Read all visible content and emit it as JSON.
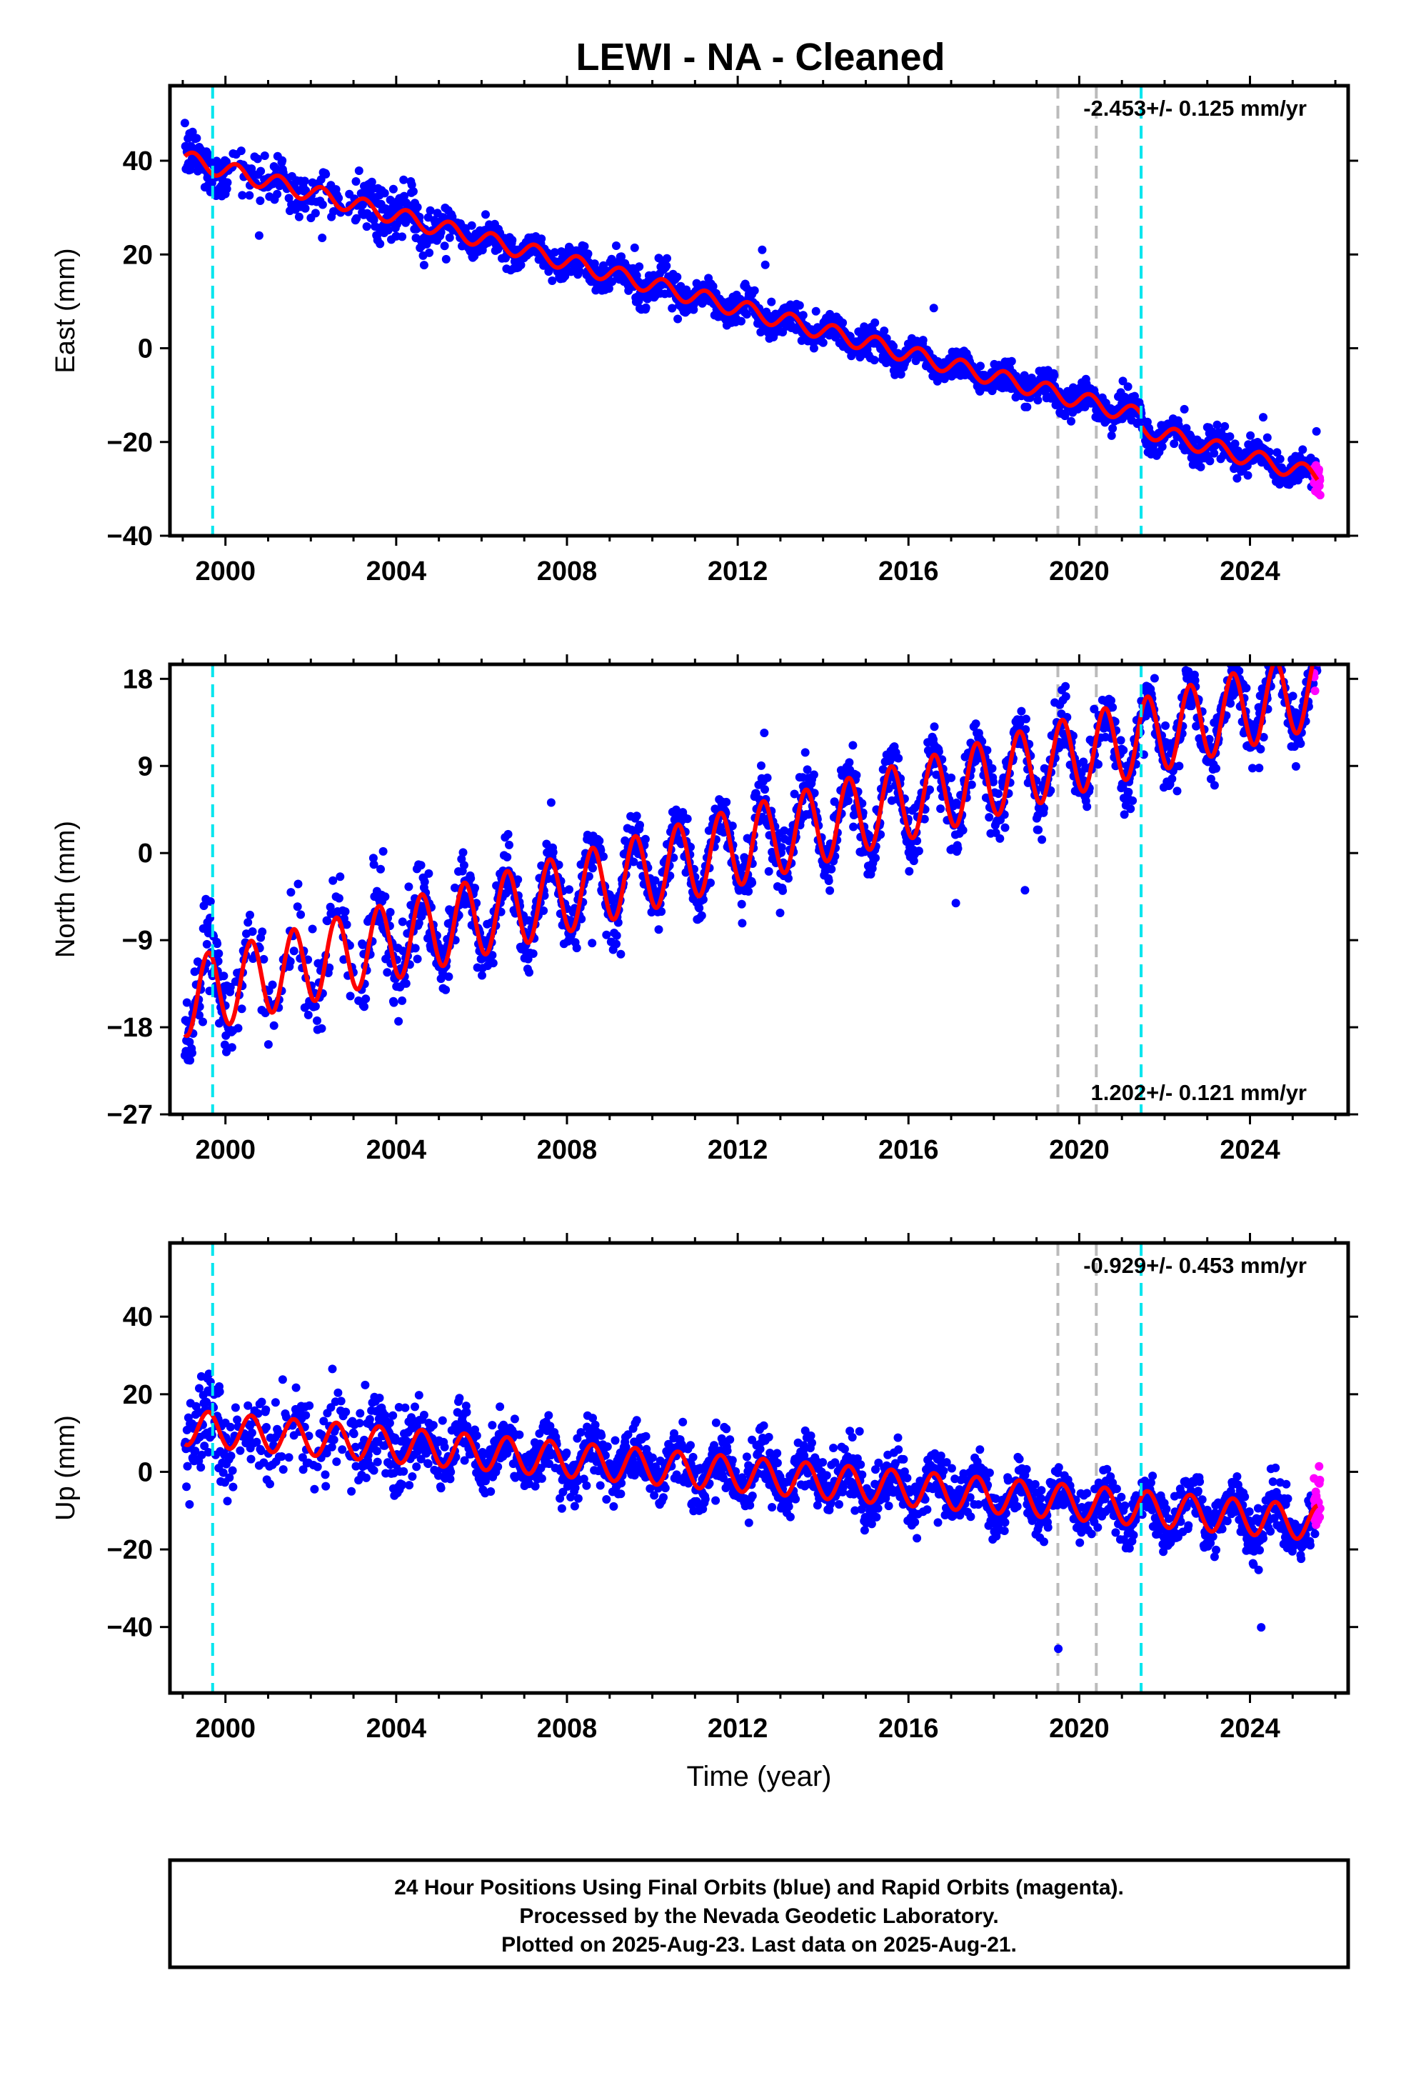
{
  "title": "LEWI  - NA - Cleaned",
  "colors": {
    "final_orbits": "#0000ff",
    "rapid_orbits": "#ff00ff",
    "model_fit": "#ff0000",
    "antenna_change": "#00e5ee",
    "equipment_change": "#bbbbbb"
  },
  "chart_data": [
    {
      "type": "scatter",
      "name": "east",
      "ylabel": "East (mm)",
      "xlabel": "",
      "xlim": [
        1998.7,
        2026.3
      ],
      "ylim": [
        -40,
        56
      ],
      "yticks": [
        40,
        20,
        0,
        -20,
        -40
      ],
      "ytick_labels": [
        "40",
        "20",
        "0",
        "−20",
        "−40"
      ],
      "xticks": [
        2000,
        2004,
        2008,
        2012,
        2016,
        2020,
        2024
      ],
      "xtick_labels": [
        "2000",
        "2004",
        "2008",
        "2012",
        "2016",
        "2020",
        "2024"
      ],
      "rate_label": "-2.453+/- 0.125 mm/yr",
      "rate_position": "top-right",
      "trend": {
        "ref_year": 1999.0,
        "value_at_ref": 40.5,
        "rate": -2.453,
        "annual_amplitude": 1.8,
        "annual_peak_frac": 0.25,
        "noise_sd": 1.6
      },
      "offsets": [
        {
          "year": 2021.45,
          "size": -2.5
        }
      ],
      "data_span": [
        1999.05,
        2025.58
      ],
      "rapid_span": [
        2025.5,
        2025.65
      ],
      "antenna_changes": [
        1999.7,
        2021.45
      ],
      "equipment_changes": [
        2019.5,
        2020.4
      ]
    },
    {
      "type": "scatter",
      "name": "north",
      "ylabel": "North (mm)",
      "xlabel": "",
      "xlim": [
        1998.7,
        2026.3
      ],
      "ylim": [
        -27,
        19.5
      ],
      "yticks": [
        18,
        9,
        0,
        -9,
        -18,
        -27
      ],
      "ytick_labels": [
        "18",
        "9",
        "0",
        "−9",
        "−18",
        "−27"
      ],
      "xticks": [
        2000,
        2004,
        2008,
        2012,
        2016,
        2020,
        2024
      ],
      "xtick_labels": [
        "2000",
        "2004",
        "2008",
        "2012",
        "2016",
        "2020",
        "2024"
      ],
      "rate_label": "1.202+/- 0.121 mm/yr",
      "rate_position": "bottom-right",
      "trend": {
        "ref_year": 1999.0,
        "value_at_ref": -15.0,
        "rate": 1.202,
        "annual_amplitude": 4.0,
        "annual_peak_frac": 0.6,
        "noise_sd": 1.5
      },
      "offsets": [],
      "data_span": [
        1999.05,
        2025.58
      ],
      "rapid_span": [
        2025.5,
        2025.65
      ],
      "antenna_changes": [
        1999.7,
        2021.45
      ],
      "equipment_changes": [
        2019.5,
        2020.4
      ]
    },
    {
      "type": "scatter",
      "name": "up",
      "ylabel": "Up (mm)",
      "xlabel": "Time (year)",
      "xlim": [
        1998.7,
        2026.3
      ],
      "ylim": [
        -57,
        59
      ],
      "yticks": [
        40,
        20,
        0,
        -20,
        -40
      ],
      "ytick_labels": [
        "40",
        "20",
        "0",
        "−20",
        "−40"
      ],
      "xticks": [
        2000,
        2004,
        2008,
        2012,
        2016,
        2020,
        2024
      ],
      "xtick_labels": [
        "2000",
        "2004",
        "2008",
        "2012",
        "2016",
        "2020",
        "2024"
      ],
      "rate_label": "-0.929+/- 0.453 mm/yr",
      "rate_position": "top-right",
      "trend": {
        "ref_year": 1999.0,
        "value_at_ref": 11.5,
        "rate": -0.929,
        "annual_amplitude": 4.5,
        "annual_peak_frac": 0.6,
        "noise_sd": 3.6
      },
      "offsets": [],
      "data_span": [
        1999.05,
        2025.58
      ],
      "rapid_span": [
        2025.5,
        2025.65
      ],
      "antenna_changes": [
        1999.7,
        2021.45
      ],
      "equipment_changes": [
        2019.5,
        2020.4
      ]
    }
  ],
  "footer": {
    "line1": "24 Hour Positions Using Final Orbits (blue) and Rapid Orbits (magenta).",
    "line2": "Processed by the Nevada Geodetic Laboratory.",
    "line3": "Plotted on 2025-Aug-23. Last data on 2025-Aug-21."
  }
}
